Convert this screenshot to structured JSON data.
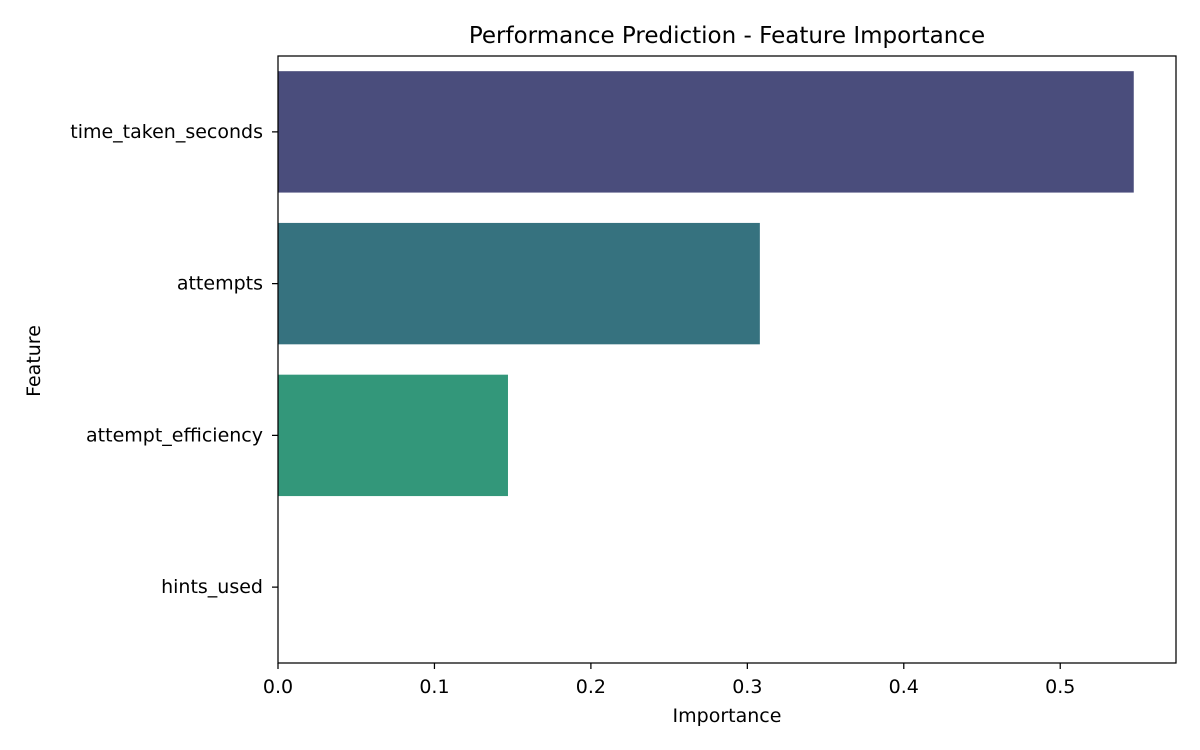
{
  "chart_data": {
    "type": "bar",
    "orientation": "horizontal",
    "title": "Performance Prediction - Feature Importance",
    "xlabel": "Importance",
    "ylabel": "Feature",
    "categories": [
      "time_taken_seconds",
      "attempts",
      "attempt_efficiency",
      "hints_used"
    ],
    "values": [
      0.547,
      0.308,
      0.147,
      0.0
    ],
    "colors": [
      "#4a4d7c",
      "#36727f",
      "#33977a",
      "#ffffff"
    ],
    "xlim": [
      0,
      0.574
    ],
    "xticks": [
      0.0,
      0.1,
      0.2,
      0.3,
      0.4,
      0.5
    ],
    "xtick_labels": [
      "0.0",
      "0.1",
      "0.2",
      "0.3",
      "0.4",
      "0.5"
    ],
    "grid": false,
    "legend": "none"
  }
}
